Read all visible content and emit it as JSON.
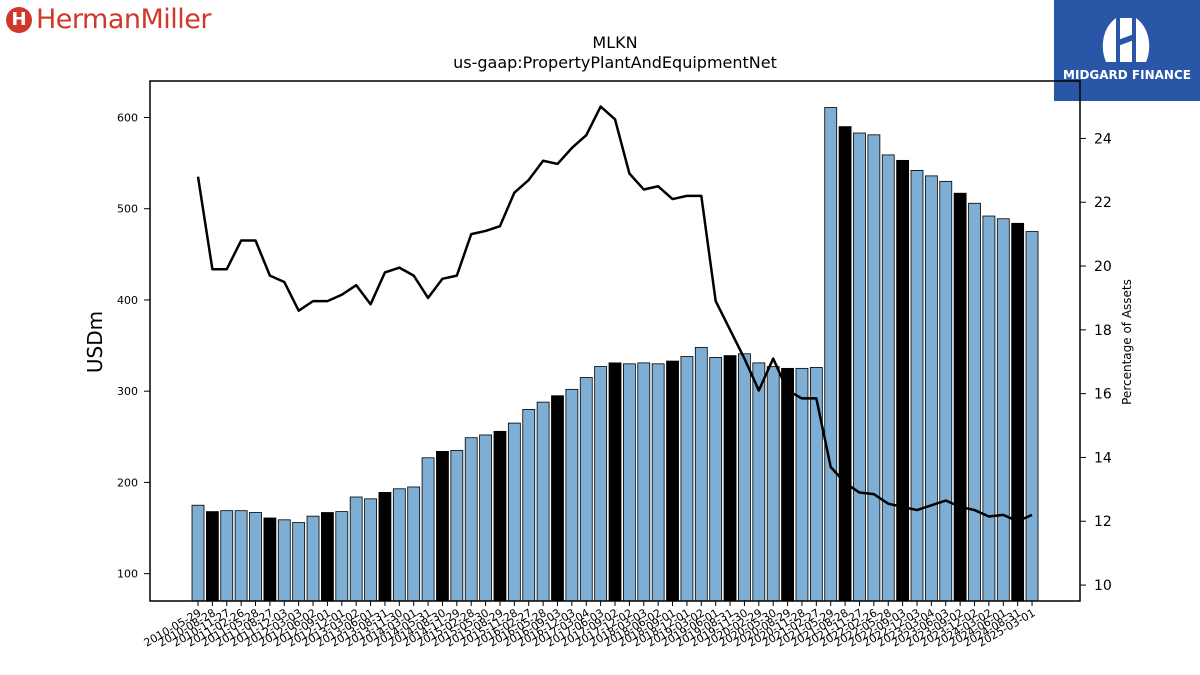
{
  "logos": {
    "left_brand": "HermanMiller",
    "left_mark": "H",
    "right_brand": "MIDGARD FINANCE"
  },
  "colors": {
    "bar_default": "#7eaed3",
    "bar_highlight": "#000000",
    "line": "#000000",
    "left_brand": "#d0382b",
    "right_logo_bg": "#2a56a8"
  },
  "chart_data": {
    "type": "bar",
    "title": "MLKN",
    "subtitle": "us-gaap:PropertyPlantAndEquipmentNet",
    "ylabel": "USDm",
    "y2label": "Percentage of Assets",
    "ylim": [
      70,
      640
    ],
    "y2lim": [
      9.5,
      25.8
    ],
    "yticks": [
      100,
      200,
      300,
      400,
      500,
      600
    ],
    "y2ticks": [
      10,
      12,
      14,
      16,
      18,
      20,
      22,
      24
    ],
    "categories": [
      "2010-05-29",
      "2010-08-28",
      "2010-11-27",
      "2011-02-26",
      "2011-05-28",
      "2011-08-27",
      "2011-12-03",
      "2012-03-03",
      "2012-06-02",
      "2012-09-01",
      "2012-12-01",
      "2013-03-02",
      "2013-06-01",
      "2013-08-31",
      "2013-11-30",
      "2014-03-01",
      "2014-05-31",
      "2014-08-30",
      "2014-11-29",
      "2015-02-28",
      "2015-05-30",
      "2015-08-29",
      "2015-11-28",
      "2016-02-27",
      "2016-05-28",
      "2016-09-03",
      "2016-12-03",
      "2017-03-04",
      "2017-06-03",
      "2017-09-02",
      "2017-12-02",
      "2018-03-03",
      "2018-06-02",
      "2018-09-01",
      "2018-12-01",
      "2019-03-02",
      "2019-06-01",
      "2019-08-31",
      "2019-11-30",
      "2020-02-29",
      "2020-05-30",
      "2020-08-29",
      "2020-11-28",
      "2021-02-27",
      "2021-05-29",
      "2021-08-28",
      "2021-11-27",
      "2022-02-26",
      "2022-05-28",
      "2022-09-03",
      "2022-12-03",
      "2023-03-04",
      "2023-06-03",
      "2023-09-02",
      "2023-12-02",
      "2024-03-02",
      "2024-06-01",
      "2024-08-31",
      "2025-03-01"
    ],
    "highlight": [
      false,
      true,
      false,
      false,
      false,
      true,
      false,
      false,
      false,
      true,
      false,
      false,
      false,
      true,
      false,
      false,
      false,
      true,
      false,
      false,
      false,
      true,
      false,
      false,
      false,
      true,
      false,
      false,
      false,
      true,
      false,
      false,
      false,
      true,
      false,
      false,
      false,
      true,
      false,
      false,
      false,
      true,
      false,
      false,
      false,
      true,
      false,
      false,
      false,
      true,
      false,
      false,
      false,
      true,
      false,
      false,
      false,
      true,
      false
    ],
    "series": [
      {
        "type": "bar",
        "axis": "left",
        "values": [
          175,
          168,
          169,
          169,
          167,
          161,
          159,
          156,
          163,
          167,
          168,
          184,
          182,
          189,
          193,
          195,
          227,
          234,
          235,
          249,
          252,
          256,
          265,
          280,
          288,
          295,
          302,
          315,
          327,
          331,
          330,
          331,
          330,
          333,
          338,
          348,
          337,
          339,
          341,
          331,
          327,
          325,
          325,
          326,
          611,
          590,
          583,
          581,
          559,
          553,
          542,
          536,
          530,
          517,
          506,
          492,
          489,
          484,
          475
        ]
      },
      {
        "type": "line",
        "axis": "right",
        "values": [
          22.8,
          19.9,
          19.9,
          20.8,
          20.8,
          19.7,
          19.5,
          18.6,
          18.9,
          18.9,
          19.1,
          19.4,
          18.8,
          19.8,
          19.95,
          19.7,
          19.0,
          19.6,
          19.7,
          21.0,
          21.1,
          21.25,
          22.3,
          22.7,
          23.3,
          23.2,
          23.7,
          24.1,
          25.0,
          24.6,
          22.9,
          22.4,
          22.5,
          22.1,
          22.2,
          22.2,
          18.9,
          18.0,
          17.1,
          16.1,
          17.1,
          16.1,
          15.85,
          15.85,
          13.7,
          13.2,
          12.9,
          12.85,
          12.55,
          12.45,
          12.35,
          12.5,
          12.65,
          12.45,
          12.35,
          12.15,
          12.2,
          12.0,
          12.2
        ]
      }
    ]
  }
}
